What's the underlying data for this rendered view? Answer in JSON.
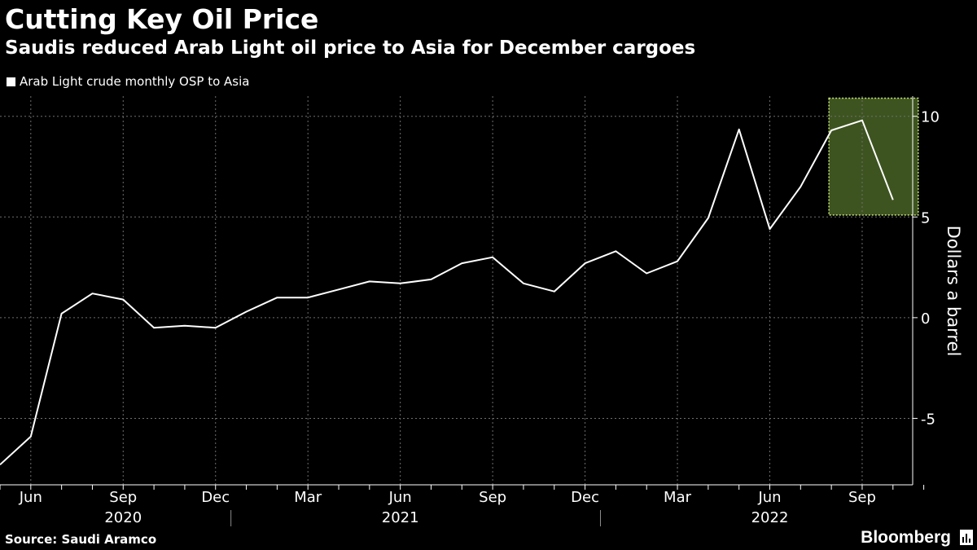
{
  "header": {
    "title": "Cutting Key Oil Price",
    "subtitle": "Saudis reduced Arab Light oil price to Asia for December cargoes"
  },
  "footer": {
    "source": "Source: Saudi Aramco",
    "brand": "Bloomberg",
    "brand_icon": "bloomberg-chart-icon"
  },
  "colors": {
    "background": "#000000",
    "line": "#ffffff",
    "highlight_fill": "#3d5420",
    "highlight_border": "#c7e37a",
    "grid": "#6e6e6e"
  },
  "chart_data": {
    "type": "line",
    "title": "Cutting Key Oil Price",
    "subtitle": "Saudis reduced Arab Light oil price to Asia for December cargoes",
    "xlabel": "",
    "ylabel": "Dollars a barrel",
    "ylim": [
      -8.3,
      11
    ],
    "yticks": [
      -5,
      0,
      5,
      10
    ],
    "ytick_labels": [
      "-5",
      "0",
      "5",
      "10"
    ],
    "grid": true,
    "legend_position": "top-left",
    "x_tick_labels": [
      {
        "label": "Jun",
        "date": "2020-06"
      },
      {
        "label": "Sep",
        "date": "2020-09"
      },
      {
        "label": "Dec",
        "date": "2020-12"
      },
      {
        "label": "Mar",
        "date": "2021-03"
      },
      {
        "label": "Jun",
        "date": "2021-06"
      },
      {
        "label": "Sep",
        "date": "2021-09"
      },
      {
        "label": "Dec",
        "date": "2021-12"
      },
      {
        "label": "Mar",
        "date": "2022-03"
      },
      {
        "label": "Jun",
        "date": "2022-06"
      },
      {
        "label": "Sep",
        "date": "2022-09"
      }
    ],
    "year_labels": [
      {
        "label": "2020",
        "date": "2020-09"
      },
      {
        "label": "2021",
        "date": "2021-06"
      },
      {
        "label": "2022",
        "date": "2022-06"
      }
    ],
    "year_separators": [
      "2021-01",
      "2022-01"
    ],
    "highlight": {
      "x_start": "2022-08",
      "x_end": "2022-10",
      "y_min": 5.1,
      "y_max": 10.9
    },
    "series": [
      {
        "name": "Arab Light crude monthly OSP to Asia",
        "color": "#ffffff",
        "x": [
          "2020-05",
          "2020-06",
          "2020-07",
          "2020-08",
          "2020-09",
          "2020-10",
          "2020-11",
          "2020-12",
          "2021-01",
          "2021-02",
          "2021-03",
          "2021-04",
          "2021-05",
          "2021-06",
          "2021-07",
          "2021-08",
          "2021-09",
          "2021-10",
          "2021-11",
          "2021-12",
          "2022-01",
          "2022-02",
          "2022-03",
          "2022-04",
          "2022-05",
          "2022-06",
          "2022-07",
          "2022-08",
          "2022-09",
          "2022-10"
        ],
        "y": [
          -7.3,
          -5.9,
          0.2,
          1.2,
          0.9,
          -0.5,
          -0.4,
          -0.5,
          0.3,
          1.0,
          1.0,
          1.4,
          1.8,
          1.7,
          1.9,
          2.7,
          3.0,
          1.7,
          1.3,
          2.7,
          3.3,
          2.2,
          2.8,
          4.95,
          9.35,
          4.4,
          6.5,
          9.3,
          9.8,
          5.85
        ]
      }
    ]
  }
}
